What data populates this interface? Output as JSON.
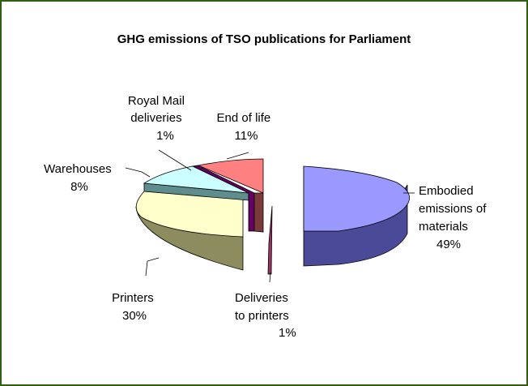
{
  "chart_data": {
    "type": "pie",
    "title": "GHG emissions of TSO publications for Parliament",
    "slices": [
      {
        "label_lines": [
          "Embodied",
          "emissions of",
          "materials"
        ],
        "pct_label": "49%",
        "value": 49
      },
      {
        "label_lines": [
          "Deliveries",
          "to printers"
        ],
        "pct_label": "1%",
        "value": 1
      },
      {
        "label_lines": [
          "Printers"
        ],
        "pct_label": "30%",
        "value": 30
      },
      {
        "label_lines": [
          "Warehouses"
        ],
        "pct_label": "8%",
        "value": 8
      },
      {
        "label_lines": [
          "Royal Mail",
          "deliveries"
        ],
        "pct_label": "1%",
        "value": 1
      },
      {
        "label_lines": [
          "End of life"
        ],
        "pct_label": "11%",
        "value": 11
      }
    ],
    "colors": {
      "embodied": "#9999ff",
      "deliveries": "#993366",
      "printers": "#ffffcc",
      "warehouses": "#ccffff",
      "royal_mail": "#660066",
      "end_of_life": "#ff8080"
    },
    "frame_color": "#2f5f12"
  }
}
